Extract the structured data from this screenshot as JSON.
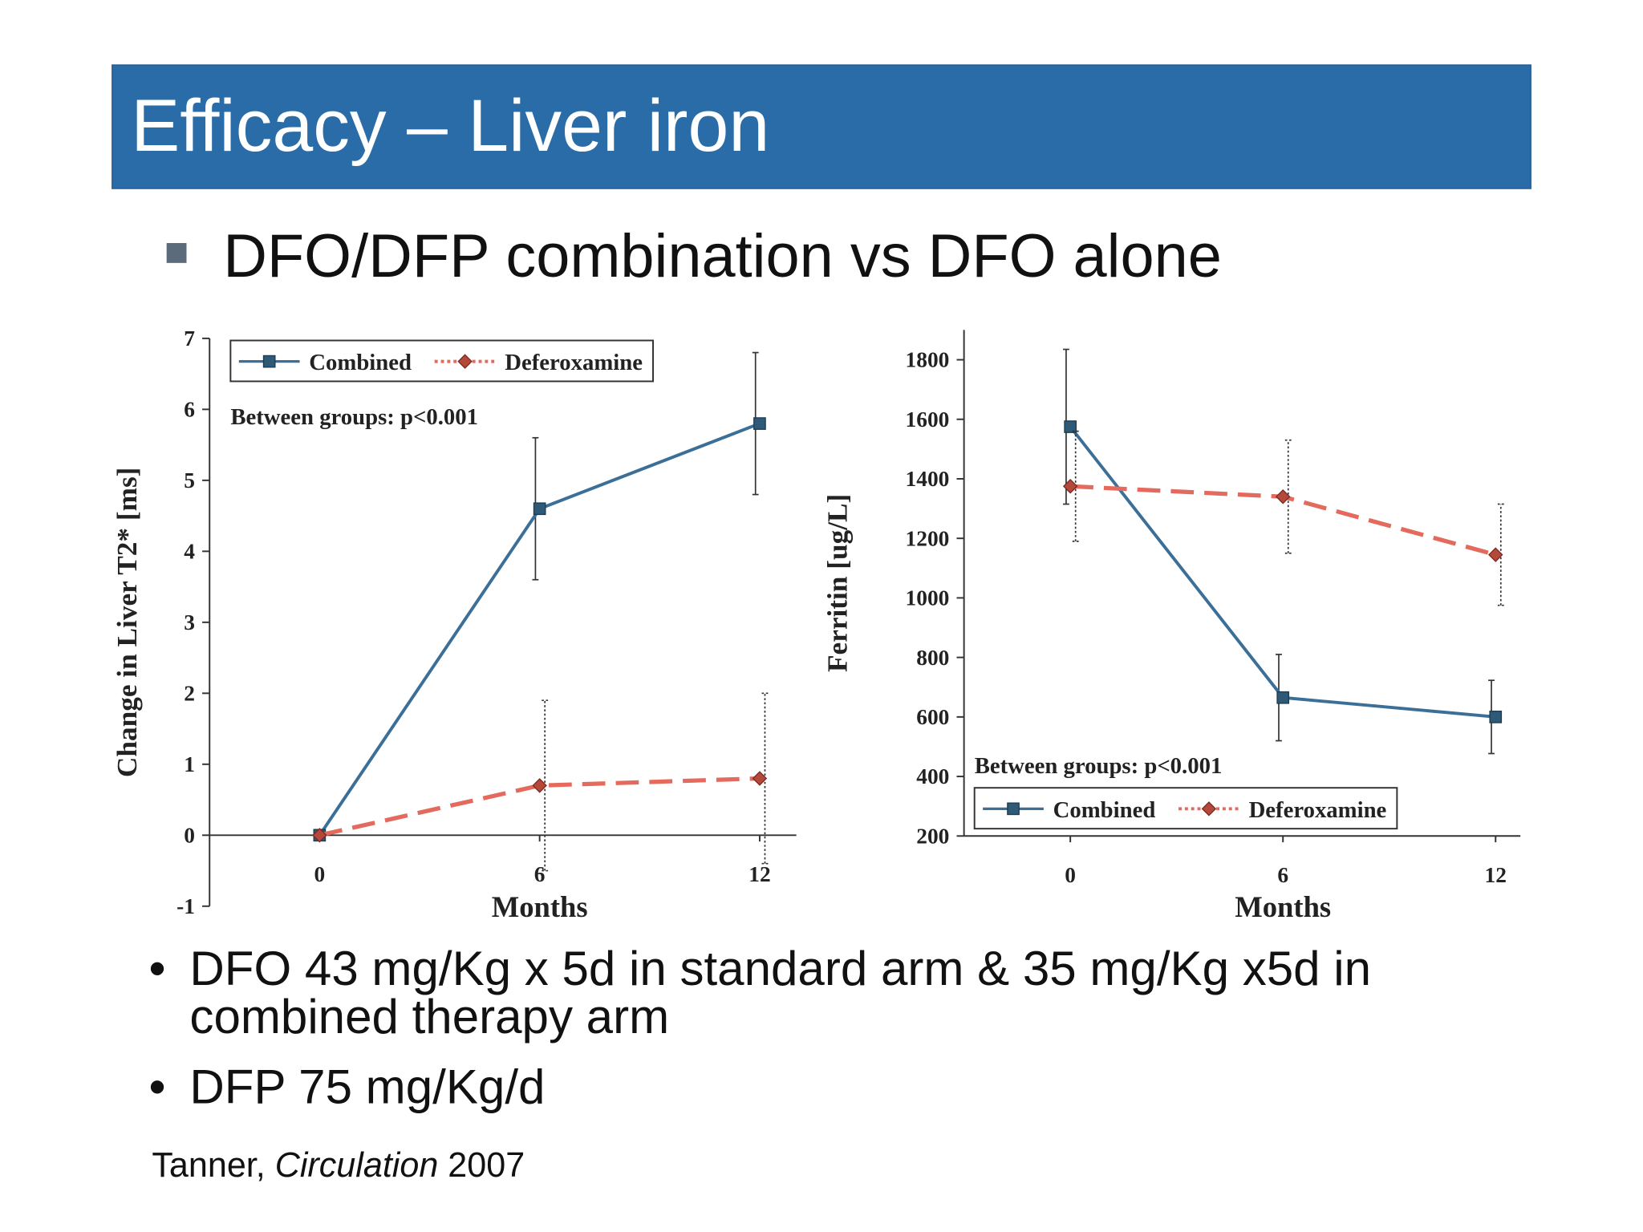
{
  "slide": {
    "title": "Efficacy – Liver iron",
    "subtitle": "DFO/DFP combination vs DFO alone",
    "bullets": [
      "DFO 43 mg/Kg x 5d in standard arm & 35 mg/Kg x5d in combined therapy arm",
      "DFP 75 mg/Kg/d"
    ],
    "citation": {
      "author": "Tanner,",
      "journal": "Circulation",
      "year": "2007"
    }
  },
  "chart_data": [
    {
      "type": "line",
      "y_label": "Change in Liver T2* [ms]",
      "x_label": "Months",
      "annotation": "Between groups: p<0.001",
      "legend": "upper left",
      "x": [
        0,
        6,
        12
      ],
      "xlim": [
        -3,
        13
      ],
      "xticks": [
        0,
        6,
        12
      ],
      "ylim": [
        -1,
        7
      ],
      "yticks": [
        -1,
        0,
        1,
        2,
        3,
        4,
        5,
        6,
        7
      ],
      "series": [
        {
          "name": "Combined",
          "color": "#3b6f98",
          "marker_color": "#2e5977",
          "line_style": "solid",
          "marker": "square",
          "values": [
            0,
            4.6,
            5.8
          ],
          "errors": [
            null,
            1.0,
            1.0
          ]
        },
        {
          "name": "Deferoxamine",
          "color": "#e36a5c",
          "marker_color": "#b4483a",
          "line_style": "dashed",
          "marker": "diamond",
          "values": [
            0,
            0.7,
            0.8
          ],
          "errors": [
            null,
            1.2,
            1.2
          ]
        }
      ]
    },
    {
      "type": "line",
      "y_label": "Ferritin [ug/L]",
      "x_label": "Months",
      "annotation": "Between groups: p<0.001",
      "legend": "lower left",
      "x": [
        0,
        6,
        12
      ],
      "xlim": [
        -3,
        12.7
      ],
      "xticks": [
        0,
        6,
        12
      ],
      "ylim": [
        200,
        1900
      ],
      "yticks": [
        200,
        400,
        600,
        800,
        1000,
        1200,
        1400,
        1600,
        1800
      ],
      "series": [
        {
          "name": "Combined",
          "color": "#3b6f98",
          "marker_color": "#2e5977",
          "line_style": "solid",
          "marker": "square",
          "values": [
            1575,
            665,
            600
          ],
          "errors": [
            260,
            145,
            123
          ]
        },
        {
          "name": "Deferoxamine",
          "color": "#e36a5c",
          "marker_color": "#b4483a",
          "line_style": "dashed",
          "marker": "diamond",
          "values": [
            1375,
            1340,
            1145
          ],
          "errors": [
            185,
            190,
            170
          ]
        }
      ]
    }
  ]
}
